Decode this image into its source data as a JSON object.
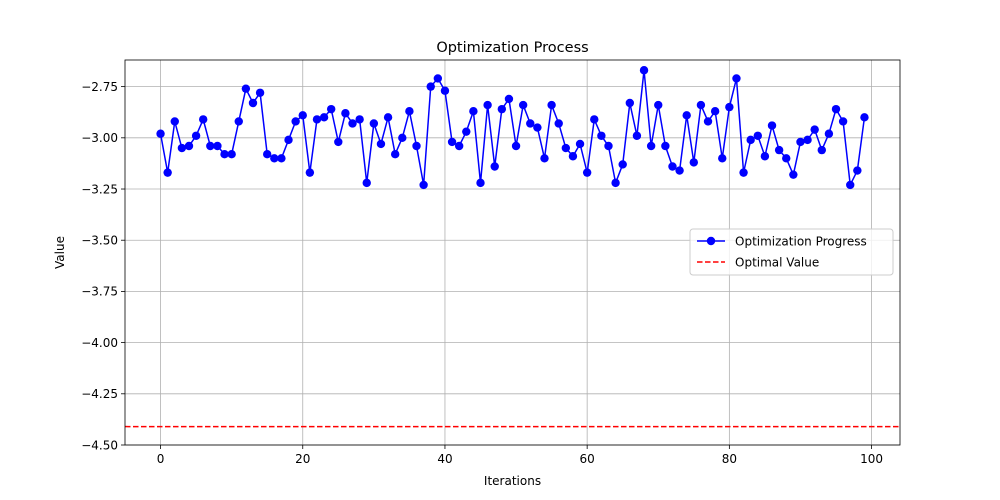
{
  "chart_data": {
    "type": "line",
    "title": "Optimization Process",
    "xlabel": "Iterations",
    "ylabel": "Value",
    "xlim": [
      -5,
      104
    ],
    "ylim": [
      -4.5,
      -2.62
    ],
    "x_ticks": [
      0,
      20,
      40,
      60,
      80,
      100
    ],
    "x_tick_labels": [
      "0",
      "20",
      "40",
      "60",
      "80",
      "100"
    ],
    "y_ticks": [
      -4.5,
      -4.25,
      -4.0,
      -3.75,
      -3.5,
      -3.25,
      -3.0,
      -2.75
    ],
    "y_tick_labels": [
      "−4.50",
      "−4.25",
      "−4.00",
      "−3.75",
      "−3.50",
      "−3.25",
      "−3.00",
      "−2.75"
    ],
    "grid": true,
    "legend_position": "center-right",
    "series": [
      {
        "name": "Optimization Progress",
        "color": "#0000ff",
        "marker": "circle",
        "line_style": "solid",
        "x": [
          0,
          1,
          2,
          3,
          4,
          5,
          6,
          7,
          8,
          9,
          10,
          11,
          12,
          13,
          14,
          15,
          16,
          17,
          18,
          19,
          20,
          21,
          22,
          23,
          24,
          25,
          26,
          27,
          28,
          29,
          30,
          31,
          32,
          33,
          34,
          35,
          36,
          37,
          38,
          39,
          40,
          41,
          42,
          43,
          44,
          45,
          46,
          47,
          48,
          49,
          50,
          51,
          52,
          53,
          54,
          55,
          56,
          57,
          58,
          59,
          60,
          61,
          62,
          63,
          64,
          65,
          66,
          67,
          68,
          69,
          70,
          71,
          72,
          73,
          74,
          75,
          76,
          77,
          78,
          79,
          80,
          81,
          82,
          83,
          84,
          85,
          86,
          87,
          88,
          89,
          90,
          91,
          92,
          93,
          94,
          95,
          96,
          97,
          98,
          99
        ],
        "y": [
          -2.98,
          -3.17,
          -2.92,
          -3.05,
          -3.04,
          -2.99,
          -2.91,
          -3.04,
          -3.04,
          -3.08,
          -3.08,
          -2.92,
          -2.76,
          -2.83,
          -2.78,
          -3.08,
          -3.1,
          -3.1,
          -3.01,
          -2.92,
          -2.89,
          -3.17,
          -2.91,
          -2.9,
          -2.86,
          -3.02,
          -2.88,
          -2.93,
          -2.91,
          -3.22,
          -2.93,
          -3.03,
          -2.9,
          -3.08,
          -3.0,
          -2.87,
          -3.04,
          -3.23,
          -2.75,
          -2.71,
          -2.77,
          -3.02,
          -3.04,
          -2.97,
          -2.87,
          -3.22,
          -2.84,
          -3.14,
          -2.86,
          -2.81,
          -3.04,
          -2.84,
          -2.93,
          -2.95,
          -3.1,
          -2.84,
          -2.93,
          -3.05,
          -3.09,
          -3.03,
          -3.17,
          -2.91,
          -2.99,
          -3.04,
          -3.22,
          -3.13,
          -2.83,
          -2.99,
          -2.67,
          -3.04,
          -2.84,
          -3.04,
          -3.14,
          -3.16,
          -2.89,
          -3.12,
          -2.84,
          -2.92,
          -2.87,
          -3.1,
          -2.85,
          -2.71,
          -3.17,
          -3.01,
          -2.99,
          -3.09,
          -2.94,
          -3.06,
          -3.1,
          -3.18,
          -3.02,
          -3.01,
          -2.96,
          -3.06,
          -2.98,
          -2.86,
          -2.92,
          -3.23,
          -3.16,
          -2.9
        ]
      },
      {
        "name": "Optimal Value",
        "color": "#ff0000",
        "line_style": "dashed",
        "horizontal_line_y": -4.41
      }
    ]
  }
}
